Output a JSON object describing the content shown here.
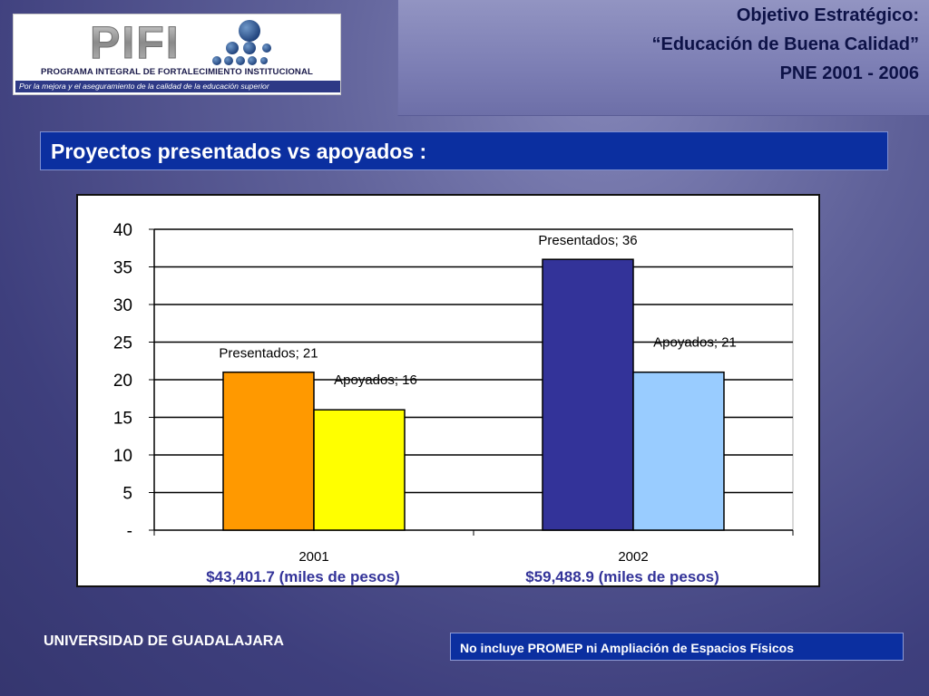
{
  "logo": {
    "word": "PIFI",
    "line1": "PROGRAMA INTEGRAL DE FORTALECIMIENTO INSTITUCIONAL",
    "line2": "Por la mejora y el aseguramiento de la calidad de la educación superior"
  },
  "header": {
    "line1": "Objetivo Estratégico:",
    "line2": "“Educación de Buena Calidad”",
    "line3": "PNE 2001 - 2006"
  },
  "section_title": "Proyectos presentados vs apoyados :",
  "chart_data": {
    "type": "bar",
    "categories": [
      "2001",
      "2002"
    ],
    "category_sublabels": [
      "$43,401.7 (miles de pesos)",
      "$59,488.9 (miles de pesos)"
    ],
    "series": [
      {
        "name": "Presentados",
        "values": [
          21,
          36
        ]
      },
      {
        "name": "Apoyados",
        "values": [
          16,
          21
        ]
      }
    ],
    "data_labels": [
      [
        "Presentados;  21",
        "Presentados;  36"
      ],
      [
        "Apoyados;  16",
        "Apoyados;  21"
      ]
    ],
    "colors": [
      [
        "#ff9900",
        "#333399"
      ],
      [
        "#ffff00",
        "#99ccff"
      ]
    ],
    "yticks": [
      "-",
      "5",
      "10",
      "15",
      "20",
      "25",
      "30",
      "35",
      "40"
    ],
    "ylim": [
      0,
      40
    ],
    "grid": true,
    "legend": "none",
    "title": "",
    "xlabel": "",
    "ylabel": ""
  },
  "footer": {
    "left": "UNIVERSIDAD DE GUADALAJARA",
    "note": "No incluye PROMEP ni Ampliación de Espacios Físicos"
  }
}
